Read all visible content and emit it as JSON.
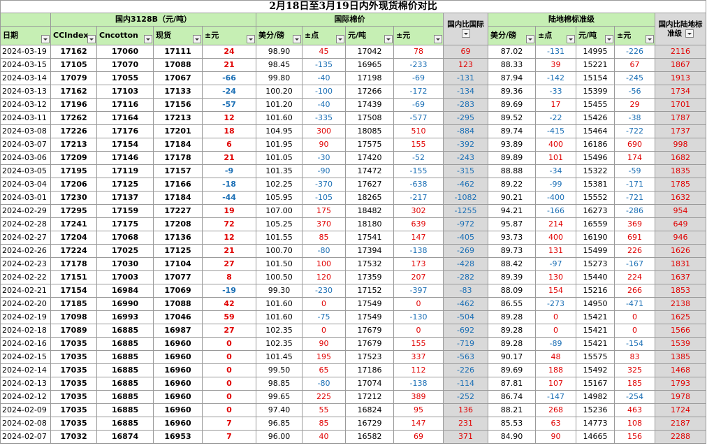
{
  "title": "2月18日至3月19日内外现货棉价对比",
  "groups": {
    "domestic": "国内3128B（元/吨）",
    "intl": "国际棉价",
    "ratio1": "国内比国际",
    "land": "陆地棉标准级",
    "ratio2": "国内比陆地标准级"
  },
  "headers": [
    "日期",
    "CCIndex",
    "Cncotton",
    "现货",
    "±元",
    "美分/磅",
    "±点",
    "元/吨",
    "±元",
    "国内比国际",
    "美分/磅",
    "±点",
    "元/吨",
    "±元",
    "国内比陆地标准级"
  ],
  "colors": {
    "header_green": "#c6efb4",
    "gray": "#d9d9d9",
    "positive": "#e00000",
    "negative": "#1b6fb5"
  },
  "rows": [
    [
      "2024-03-19",
      "17162",
      "17060",
      "17111",
      "24",
      "98.90",
      "45",
      "17042",
      "78",
      "69",
      "87.02",
      "-131",
      "14995",
      "-226",
      "2116"
    ],
    [
      "2024-03-15",
      "17105",
      "17070",
      "17088",
      "21",
      "98.45",
      "-135",
      "16965",
      "-233",
      "123",
      "88.33",
      "39",
      "15221",
      "67",
      "1867"
    ],
    [
      "2024-03-14",
      "17079",
      "17055",
      "17067",
      "-66",
      "99.80",
      "-40",
      "17198",
      "-69",
      "-131",
      "87.94",
      "-142",
      "15154",
      "-245",
      "1913"
    ],
    [
      "2024-03-13",
      "17162",
      "17103",
      "17133",
      "-24",
      "100.20",
      "-100",
      "17266",
      "-172",
      "-134",
      "89.36",
      "-33",
      "15399",
      "-56",
      "1734"
    ],
    [
      "2024-03-12",
      "17196",
      "17116",
      "17156",
      "-57",
      "101.20",
      "-40",
      "17439",
      "-69",
      "-283",
      "89.69",
      "17",
      "15455",
      "29",
      "1701"
    ],
    [
      "2024-03-11",
      "17262",
      "17164",
      "17213",
      "12",
      "101.60",
      "-335",
      "17508",
      "-577",
      "-295",
      "89.52",
      "-22",
      "15426",
      "-38",
      "1787"
    ],
    [
      "2024-03-08",
      "17226",
      "17176",
      "17201",
      "18",
      "104.95",
      "300",
      "18085",
      "510",
      "-884",
      "89.74",
      "-415",
      "15464",
      "-722",
      "1737"
    ],
    [
      "2024-03-07",
      "17213",
      "17154",
      "17184",
      "6",
      "101.95",
      "90",
      "17575",
      "155",
      "-392",
      "93.89",
      "400",
      "16186",
      "690",
      "998"
    ],
    [
      "2024-03-06",
      "17209",
      "17146",
      "17178",
      "21",
      "101.05",
      "-30",
      "17420",
      "-52",
      "-243",
      "89.89",
      "101",
      "15496",
      "174",
      "1682"
    ],
    [
      "2024-03-05",
      "17195",
      "17119",
      "17157",
      "-9",
      "101.35",
      "-90",
      "17472",
      "-155",
      "-315",
      "88.88",
      "-34",
      "15322",
      "-59",
      "1835"
    ],
    [
      "2024-03-04",
      "17206",
      "17125",
      "17166",
      "-18",
      "102.25",
      "-370",
      "17627",
      "-638",
      "-462",
      "89.22",
      "-99",
      "15381",
      "-171",
      "1785"
    ],
    [
      "2024-03-01",
      "17230",
      "17137",
      "17184",
      "-44",
      "105.95",
      "-105",
      "18265",
      "-217",
      "-1082",
      "90.21",
      "-400",
      "15552",
      "-721",
      "1632"
    ],
    [
      "2024-02-29",
      "17295",
      "17159",
      "17227",
      "19",
      "107.00",
      "175",
      "18482",
      "302",
      "-1255",
      "94.21",
      "-166",
      "16273",
      "-286",
      "954"
    ],
    [
      "2024-02-28",
      "17241",
      "17175",
      "17208",
      "72",
      "105.25",
      "370",
      "18180",
      "639",
      "-972",
      "95.87",
      "214",
      "16559",
      "369",
      "649"
    ],
    [
      "2024-02-27",
      "17204",
      "17068",
      "17136",
      "12",
      "101.55",
      "85",
      "17541",
      "147",
      "-405",
      "93.73",
      "400",
      "16190",
      "691",
      "946"
    ],
    [
      "2024-02-26",
      "17224",
      "17025",
      "17125",
      "21",
      "100.70",
      "-80",
      "17394",
      "-138",
      "-269",
      "89.73",
      "131",
      "15499",
      "226",
      "1626"
    ],
    [
      "2024-02-23",
      "17178",
      "17030",
      "17104",
      "27",
      "101.50",
      "100",
      "17532",
      "173",
      "-428",
      "88.42",
      "-97",
      "15273",
      "-167",
      "1831"
    ],
    [
      "2024-02-22",
      "17151",
      "17003",
      "17077",
      "8",
      "100.50",
      "120",
      "17359",
      "207",
      "-282",
      "89.39",
      "130",
      "15440",
      "224",
      "1637"
    ],
    [
      "2024-02-21",
      "17154",
      "16984",
      "17069",
      "-19",
      "99.30",
      "-230",
      "17152",
      "-397",
      "-83",
      "88.09",
      "154",
      "15216",
      "266",
      "1853"
    ],
    [
      "2024-02-20",
      "17185",
      "16990",
      "17088",
      "42",
      "101.60",
      "0",
      "17549",
      "0",
      "-462",
      "86.55",
      "-273",
      "14950",
      "-471",
      "2138"
    ],
    [
      "2024-02-19",
      "17098",
      "16993",
      "17046",
      "59",
      "101.60",
      "-75",
      "17549",
      "-130",
      "-504",
      "89.28",
      "0",
      "15421",
      "0",
      "1625"
    ],
    [
      "2024-02-18",
      "17089",
      "16885",
      "16987",
      "27",
      "102.35",
      "0",
      "17679",
      "0",
      "-692",
      "89.28",
      "0",
      "15421",
      "0",
      "1566"
    ],
    [
      "2024-02-16",
      "17035",
      "16885",
      "16960",
      "0",
      "102.35",
      "90",
      "17679",
      "155",
      "-719",
      "89.28",
      "-89",
      "15421",
      "-154",
      "1539"
    ],
    [
      "2024-02-15",
      "17035",
      "16885",
      "16960",
      "0",
      "101.45",
      "195",
      "17523",
      "337",
      "-563",
      "90.17",
      "48",
      "15575",
      "83",
      "1385"
    ],
    [
      "2024-02-14",
      "17035",
      "16885",
      "16960",
      "0",
      "99.50",
      "65",
      "17186",
      "112",
      "-226",
      "89.69",
      "188",
      "15492",
      "325",
      "1468"
    ],
    [
      "2024-02-13",
      "17035",
      "16885",
      "16960",
      "0",
      "98.85",
      "-80",
      "17074",
      "-138",
      "-114",
      "87.81",
      "107",
      "15167",
      "185",
      "1793"
    ],
    [
      "2024-02-12",
      "17035",
      "16885",
      "16960",
      "0",
      "99.65",
      "225",
      "17212",
      "389",
      "-252",
      "86.74",
      "-147",
      "14982",
      "-254",
      "1978"
    ],
    [
      "2024-02-09",
      "17035",
      "16885",
      "16960",
      "0",
      "97.40",
      "55",
      "16824",
      "95",
      "136",
      "88.21",
      "268",
      "15236",
      "463",
      "1724"
    ],
    [
      "2024-02-08",
      "17035",
      "16885",
      "16960",
      "7",
      "96.85",
      "85",
      "16729",
      "147",
      "231",
      "85.53",
      "63",
      "14773",
      "108",
      "2187"
    ],
    [
      "2024-02-07",
      "17032",
      "16874",
      "16953",
      "7",
      "96.00",
      "40",
      "16582",
      "69",
      "371",
      "84.90",
      "90",
      "14665",
      "156",
      "2288"
    ]
  ]
}
